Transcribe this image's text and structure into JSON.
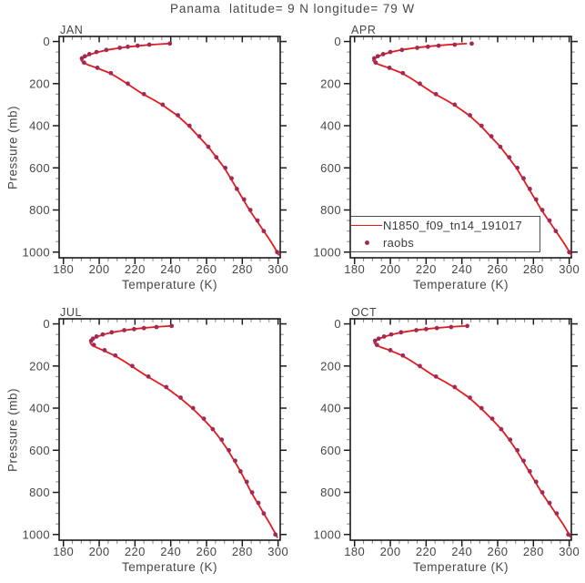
{
  "chart_data": {
    "type": "line",
    "title": "Panama  latitude= 9 N longitude= 79 W",
    "xlabel": "Temperature (K)",
    "ylabel": "Pressure (mb)",
    "xlim": [
      177.6,
      301.2
    ],
    "ylim_top_to_bottom": [
      -24,
      1027
    ],
    "x_ticks": [
      180,
      200,
      220,
      240,
      260,
      280,
      300
    ],
    "x_minor_step": 5,
    "y_ticks": [
      0,
      200,
      400,
      600,
      800,
      1000
    ],
    "y_minor_step": 50,
    "grid": false,
    "legend_position": "inside APR panel, bottom-left",
    "series": [
      {
        "name": "N1850_f09_tn14_191017",
        "type": "line",
        "color": "#e31a1c"
      },
      {
        "name": "raobs",
        "type": "marker",
        "color": "#a12a55"
      }
    ],
    "panels": [
      {
        "label": "JAN",
        "model": {
          "pressure": [
            10,
            15,
            20,
            25,
            30,
            40,
            50,
            60,
            70,
            80,
            90,
            100,
            110,
            125,
            150,
            175,
            200,
            225,
            250,
            275,
            300,
            350,
            400,
            450,
            500,
            550,
            600,
            650,
            700,
            750,
            800,
            850,
            900,
            950,
            1000,
            1013
          ],
          "temperature": [
            238.5,
            229.5,
            222.5,
            217,
            212,
            204.5,
            199.5,
            195.5,
            192.5,
            190.8,
            190,
            191,
            193.5,
            198.5,
            206,
            211,
            215.5,
            220,
            224.5,
            230,
            235,
            243.5,
            250,
            255.5,
            261,
            265.5,
            270,
            273.5,
            277,
            280.5,
            284,
            288,
            292,
            296,
            299.5,
            300.3
          ]
        },
        "raobs": {
          "pressure": [
            10,
            15,
            20,
            25,
            30,
            40,
            50,
            60,
            70,
            80,
            100,
            125,
            150,
            200,
            250,
            300,
            350,
            400,
            450,
            500,
            550,
            600,
            650,
            700,
            750,
            800,
            850,
            900,
            1000
          ],
          "temperature": [
            239.5,
            228,
            221.5,
            216,
            211.5,
            204,
            198.5,
            194.5,
            192,
            190.3,
            191.5,
            199,
            206.5,
            216,
            225,
            235.5,
            244,
            250.5,
            256,
            261,
            265.5,
            270.5,
            274,
            277,
            281,
            284.5,
            288.5,
            292,
            299.5
          ]
        }
      },
      {
        "label": "APR",
        "model": {
          "pressure": [
            10,
            15,
            20,
            25,
            30,
            40,
            50,
            60,
            70,
            80,
            90,
            100,
            110,
            125,
            150,
            175,
            200,
            225,
            250,
            275,
            300,
            350,
            400,
            450,
            500,
            550,
            600,
            650,
            700,
            750,
            800,
            850,
            900,
            950,
            1000,
            1013
          ],
          "temperature": [
            242.5,
            233,
            225.5,
            219.5,
            214,
            206,
            200.5,
            196.5,
            193.2,
            191.2,
            190.3,
            191.2,
            193.8,
            199,
            206.5,
            211.5,
            216,
            220.5,
            225,
            230.5,
            235.5,
            244,
            250.5,
            256,
            261.5,
            266,
            270.5,
            274,
            277.5,
            281,
            284.5,
            288.5,
            292.5,
            296.5,
            300.2,
            301
          ]
        },
        "raobs": {
          "pressure": [
            10,
            15,
            20,
            25,
            30,
            40,
            50,
            60,
            70,
            80,
            100,
            125,
            150,
            200,
            250,
            300,
            350,
            400,
            450,
            500,
            550,
            600,
            650,
            700,
            750,
            800,
            850,
            900,
            1000
          ],
          "temperature": [
            245.5,
            236,
            227,
            221,
            215,
            206.5,
            200,
            196,
            193,
            191,
            191.8,
            199.5,
            207,
            216.5,
            225.5,
            236,
            244.5,
            251,
            256.5,
            261.5,
            266.5,
            271,
            274.5,
            278,
            281.5,
            285,
            289,
            292.5,
            300
          ]
        }
      },
      {
        "label": "JUL",
        "model": {
          "pressure": [
            10,
            15,
            20,
            25,
            30,
            40,
            50,
            60,
            70,
            80,
            90,
            100,
            110,
            125,
            150,
            175,
            200,
            225,
            250,
            275,
            300,
            350,
            400,
            450,
            500,
            550,
            600,
            650,
            700,
            750,
            800,
            850,
            900,
            950,
            1000,
            1013
          ],
          "temperature": [
            239.5,
            231,
            224,
            219,
            214.5,
            207.5,
            202.5,
            199,
            196.5,
            195.3,
            195,
            195.8,
            198,
            202,
            208.5,
            213.5,
            218,
            222.5,
            227,
            232,
            237,
            245,
            252,
            258,
            263.5,
            268,
            272,
            275.5,
            279,
            282,
            285,
            288.5,
            292,
            295.5,
            298.8,
            299.5
          ]
        },
        "raobs": {
          "pressure": [
            10,
            15,
            20,
            25,
            30,
            40,
            50,
            60,
            70,
            80,
            100,
            125,
            150,
            200,
            250,
            300,
            350,
            400,
            450,
            500,
            550,
            600,
            650,
            700,
            750,
            800,
            850,
            900,
            1000
          ],
          "temperature": [
            240.5,
            232,
            225,
            219.5,
            214,
            207,
            202,
            198.5,
            196.5,
            195.5,
            197,
            203,
            209,
            218.5,
            227.5,
            237.5,
            245.5,
            252.5,
            258.5,
            263.5,
            268.5,
            272.5,
            276,
            279,
            282.5,
            285.5,
            289,
            292,
            298.5
          ]
        }
      },
      {
        "label": "OCT",
        "model": {
          "pressure": [
            10,
            15,
            20,
            25,
            30,
            40,
            50,
            60,
            70,
            80,
            90,
            100,
            110,
            125,
            150,
            175,
            200,
            225,
            250,
            275,
            300,
            350,
            400,
            450,
            500,
            550,
            600,
            650,
            700,
            750,
            800,
            850,
            900,
            950,
            1000,
            1013
          ],
          "temperature": [
            241.5,
            232.5,
            225,
            219.5,
            214,
            206.5,
            201,
            197,
            193.8,
            191.8,
            191,
            192,
            194.5,
            199.5,
            206.5,
            211.5,
            216,
            220.5,
            225,
            230.5,
            235.5,
            244,
            250.5,
            256.5,
            262,
            266.5,
            270.5,
            274,
            277.5,
            281,
            284.5,
            288.5,
            292.5,
            296.5,
            300,
            300.8
          ]
        },
        "raobs": {
          "pressure": [
            10,
            15,
            20,
            25,
            30,
            40,
            50,
            60,
            70,
            80,
            100,
            125,
            150,
            200,
            250,
            300,
            350,
            400,
            450,
            500,
            550,
            600,
            650,
            700,
            750,
            800,
            850,
            900,
            1000
          ],
          "temperature": [
            243,
            234,
            226,
            220,
            214.5,
            206,
            200.5,
            196.5,
            193.5,
            191.5,
            192.5,
            200,
            207,
            216.5,
            225.5,
            236,
            244.5,
            251,
            257,
            262,
            267,
            271,
            274.5,
            278,
            281.5,
            285,
            289,
            293,
            299.5
          ]
        }
      }
    ]
  }
}
